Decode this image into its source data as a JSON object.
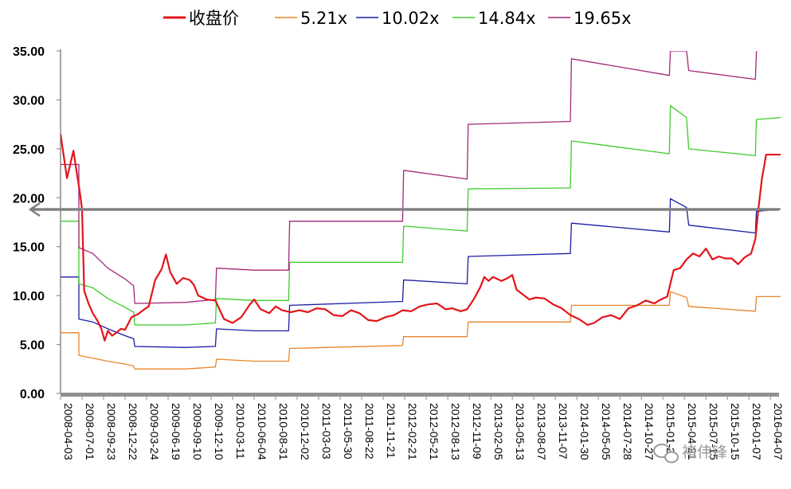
{
  "chart_data": {
    "type": "line",
    "ylim": [
      0,
      35
    ],
    "yticks": [
      "0.00",
      "5.00",
      "10.00",
      "15.00",
      "20.00",
      "25.00",
      "30.00",
      "35.00"
    ],
    "xticks": [
      "2008-04-03",
      "2008-07-01",
      "2008-09-23",
      "2008-12-22",
      "2009-03-24",
      "2009-06-19",
      "2009-09-10",
      "2009-12-10",
      "2010-03-11",
      "2010-06-04",
      "2010-08-31",
      "2010-12-02",
      "2011-03-03",
      "2011-05-30",
      "2011-08-22",
      "2011-11-21",
      "2012-02-21",
      "2012-05-21",
      "2012-08-13",
      "2012-11-09",
      "2013-02-05",
      "2013-05-13",
      "2013-08-07",
      "2013-11-07",
      "2014-01-30",
      "2014-05-05",
      "2014-07-28",
      "2014-10-27",
      "2015-01-20",
      "2015-04-21",
      "2015-07-15",
      "2015-10-15",
      "2016-01-07",
      "2016-04-07"
    ],
    "legend": [
      "收盘价",
      "5.21x",
      "10.02x",
      "14.84x",
      "19.65x"
    ],
    "legend_placement": "top",
    "grid": false,
    "reference_line": {
      "y": 18.8,
      "color": "#808080",
      "arrow": "left"
    },
    "series": [
      {
        "name": "收盘价",
        "color": "#e3141a",
        "values": [
          [
            0,
            26.5
          ],
          [
            0.3,
            22
          ],
          [
            0.6,
            24.8
          ],
          [
            0.9,
            20.5
          ],
          [
            1,
            18.8
          ],
          [
            1.1,
            10.5
          ],
          [
            1.3,
            9.2
          ],
          [
            1.5,
            8.2
          ],
          [
            1.7,
            7.5
          ],
          [
            1.9,
            6.6
          ],
          [
            2.05,
            5.4
          ],
          [
            2.2,
            6.4
          ],
          [
            2.4,
            5.9
          ],
          [
            2.6,
            6.2
          ],
          [
            2.8,
            6.6
          ],
          [
            3.0,
            6.5
          ],
          [
            3.3,
            7.8
          ],
          [
            3.6,
            8.1
          ],
          [
            3.9,
            8.6
          ],
          [
            4.1,
            8.9
          ],
          [
            4.4,
            11.6
          ],
          [
            4.7,
            12.7
          ],
          [
            4.9,
            14.2
          ],
          [
            5.1,
            12.4
          ],
          [
            5.4,
            11.2
          ],
          [
            5.7,
            11.8
          ],
          [
            6.0,
            11.6
          ],
          [
            6.2,
            11.1
          ],
          [
            6.4,
            10.0
          ],
          [
            6.8,
            9.6
          ],
          [
            7.2,
            9.5
          ],
          [
            7.6,
            7.6
          ],
          [
            8.0,
            7.2
          ],
          [
            8.4,
            7.8
          ],
          [
            8.8,
            9.1
          ],
          [
            9.0,
            9.6
          ],
          [
            9.3,
            8.6
          ],
          [
            9.7,
            8.2
          ],
          [
            10.0,
            8.9
          ],
          [
            10.3,
            8.5
          ],
          [
            10.7,
            8.3
          ],
          [
            11.1,
            8.5
          ],
          [
            11.5,
            8.3
          ],
          [
            11.9,
            8.7
          ],
          [
            12.3,
            8.6
          ],
          [
            12.7,
            8.0
          ],
          [
            13.1,
            7.9
          ],
          [
            13.5,
            8.5
          ],
          [
            13.9,
            8.2
          ],
          [
            14.3,
            7.5
          ],
          [
            14.7,
            7.4
          ],
          [
            15.1,
            7.8
          ],
          [
            15.5,
            8.0
          ],
          [
            15.9,
            8.5
          ],
          [
            16.3,
            8.4
          ],
          [
            16.7,
            8.9
          ],
          [
            17.1,
            9.1
          ],
          [
            17.5,
            9.2
          ],
          [
            17.9,
            8.6
          ],
          [
            18.2,
            8.7
          ],
          [
            18.6,
            8.4
          ],
          [
            18.9,
            8.6
          ],
          [
            19.2,
            9.6
          ],
          [
            19.5,
            10.8
          ],
          [
            19.7,
            11.9
          ],
          [
            19.9,
            11.5
          ],
          [
            20.1,
            11.9
          ],
          [
            20.5,
            11.5
          ],
          [
            20.8,
            11.8
          ],
          [
            21.0,
            12.1
          ],
          [
            21.2,
            10.6
          ],
          [
            21.5,
            10.1
          ],
          [
            21.8,
            9.6
          ],
          [
            22.1,
            9.8
          ],
          [
            22.5,
            9.7
          ],
          [
            22.9,
            9.1
          ],
          [
            23.3,
            8.7
          ],
          [
            23.7,
            8.0
          ],
          [
            24.1,
            7.6
          ],
          [
            24.5,
            7.0
          ],
          [
            24.8,
            7.2
          ],
          [
            25.2,
            7.8
          ],
          [
            25.6,
            8.0
          ],
          [
            26.0,
            7.6
          ],
          [
            26.4,
            8.7
          ],
          [
            26.8,
            9.0
          ],
          [
            27.2,
            9.5
          ],
          [
            27.6,
            9.2
          ],
          [
            27.9,
            9.6
          ],
          [
            28.2,
            9.9
          ],
          [
            28.5,
            12.6
          ],
          [
            28.8,
            12.8
          ],
          [
            29.1,
            13.7
          ],
          [
            29.4,
            14.3
          ],
          [
            29.7,
            14.0
          ],
          [
            30.0,
            14.8
          ],
          [
            30.3,
            13.7
          ],
          [
            30.6,
            14.0
          ],
          [
            30.9,
            13.8
          ],
          [
            31.2,
            13.8
          ],
          [
            31.5,
            13.2
          ],
          [
            31.8,
            13.9
          ],
          [
            32.1,
            14.3
          ],
          [
            32.3,
            15.8
          ],
          [
            32.45,
            19.0
          ],
          [
            32.6,
            21.9
          ],
          [
            32.8,
            24.4
          ],
          [
            34.1,
            24.4
          ]
        ]
      },
      {
        "name": "5.21x",
        "color": "#e8862a",
        "values": [
          [
            0,
            6.2
          ],
          [
            0.85,
            6.2
          ],
          [
            0.85,
            3.9
          ],
          [
            1.5,
            3.6
          ],
          [
            2.2,
            3.3
          ],
          [
            3.0,
            3.0
          ],
          [
            3.4,
            2.8
          ],
          [
            3.45,
            2.5
          ],
          [
            5.8,
            2.5
          ],
          [
            7.2,
            2.7
          ],
          [
            7.25,
            3.5
          ],
          [
            9.0,
            3.3
          ],
          [
            10.6,
            3.3
          ],
          [
            10.65,
            4.6
          ],
          [
            15.9,
            4.9
          ],
          [
            15.95,
            5.8
          ],
          [
            18.9,
            5.8
          ],
          [
            18.95,
            7.3
          ],
          [
            23.7,
            7.3
          ],
          [
            23.75,
            9.0
          ],
          [
            28.3,
            9.0
          ],
          [
            28.35,
            10.4
          ],
          [
            29.1,
            9.8
          ],
          [
            29.2,
            8.9
          ],
          [
            32.3,
            8.4
          ],
          [
            32.35,
            9.9
          ],
          [
            34.1,
            9.9
          ]
        ]
      },
      {
        "name": "10.02x",
        "color": "#1b1ba6",
        "values": [
          [
            0,
            11.9
          ],
          [
            0.85,
            11.9
          ],
          [
            0.85,
            7.6
          ],
          [
            1.5,
            7.3
          ],
          [
            2.2,
            6.6
          ],
          [
            3.0,
            5.9
          ],
          [
            3.4,
            5.6
          ],
          [
            3.45,
            4.8
          ],
          [
            5.8,
            4.7
          ],
          [
            7.2,
            4.8
          ],
          [
            7.25,
            6.6
          ],
          [
            9.0,
            6.4
          ],
          [
            10.6,
            6.4
          ],
          [
            10.65,
            9.0
          ],
          [
            15.9,
            9.4
          ],
          [
            15.95,
            11.6
          ],
          [
            18.9,
            11.2
          ],
          [
            18.95,
            14.0
          ],
          [
            23.7,
            14.3
          ],
          [
            23.75,
            17.4
          ],
          [
            28.3,
            16.5
          ],
          [
            28.35,
            19.9
          ],
          [
            29.1,
            19.0
          ],
          [
            29.2,
            17.2
          ],
          [
            32.3,
            16.4
          ],
          [
            32.35,
            18.6
          ],
          [
            34.1,
            19.0
          ]
        ]
      },
      {
        "name": "14.84x",
        "color": "#3ecb2a",
        "values": [
          [
            0,
            17.6
          ],
          [
            0.85,
            17.6
          ],
          [
            0.85,
            11.2
          ],
          [
            1.5,
            10.8
          ],
          [
            2.2,
            9.7
          ],
          [
            3.0,
            8.8
          ],
          [
            3.4,
            8.3
          ],
          [
            3.45,
            7.0
          ],
          [
            5.8,
            7.0
          ],
          [
            7.2,
            7.2
          ],
          [
            7.25,
            9.7
          ],
          [
            9.0,
            9.5
          ],
          [
            10.6,
            9.5
          ],
          [
            10.65,
            13.4
          ],
          [
            15.9,
            13.4
          ],
          [
            15.95,
            17.1
          ],
          [
            18.9,
            16.6
          ],
          [
            18.95,
            20.9
          ],
          [
            23.7,
            21.0
          ],
          [
            23.75,
            25.8
          ],
          [
            28.3,
            24.5
          ],
          [
            28.35,
            29.4
          ],
          [
            29.1,
            28.2
          ],
          [
            29.2,
            25.0
          ],
          [
            32.3,
            24.3
          ],
          [
            32.35,
            28.0
          ],
          [
            34.1,
            28.3
          ]
        ]
      },
      {
        "name": "19.65x",
        "color": "#a3287a",
        "values": [
          [
            0,
            23.4
          ],
          [
            0.85,
            23.4
          ],
          [
            0.85,
            14.9
          ],
          [
            1.5,
            14.3
          ],
          [
            2.2,
            12.8
          ],
          [
            3.0,
            11.7
          ],
          [
            3.4,
            11.0
          ],
          [
            3.45,
            9.2
          ],
          [
            5.8,
            9.3
          ],
          [
            7.2,
            9.6
          ],
          [
            7.25,
            12.8
          ],
          [
            9.0,
            12.6
          ],
          [
            10.6,
            12.6
          ],
          [
            10.65,
            17.6
          ],
          [
            15.9,
            17.6
          ],
          [
            15.95,
            22.8
          ],
          [
            18.9,
            21.9
          ],
          [
            18.95,
            27.5
          ],
          [
            23.7,
            27.8
          ],
          [
            23.75,
            34.2
          ],
          [
            28.3,
            32.5
          ],
          [
            28.35,
            35.0
          ],
          [
            29.1,
            35.0
          ],
          [
            29.2,
            33.0
          ],
          [
            32.3,
            32.1
          ],
          [
            32.35,
            35.0
          ]
        ]
      }
    ]
  },
  "watermark": "褚伟锋",
  "watermark_icon": "wechat-icon"
}
